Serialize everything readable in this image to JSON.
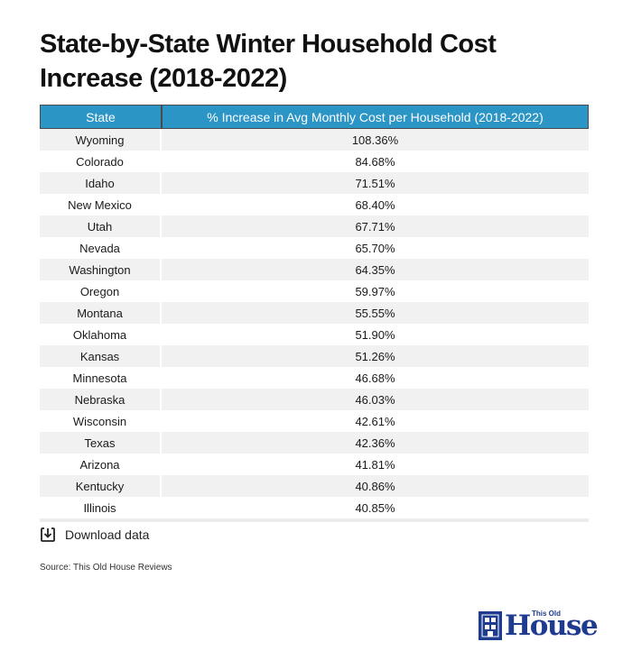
{
  "title": "State-by-State Winter Household Cost Increase (2018-2022)",
  "chart_data": {
    "type": "table",
    "columns": [
      "State",
      "% Increase in Avg Monthly Cost per Household (2018-2022)"
    ],
    "rows": [
      [
        "Wyoming",
        "108.36%"
      ],
      [
        "Colorado",
        "84.68%"
      ],
      [
        "Idaho",
        "71.51%"
      ],
      [
        "New Mexico",
        "68.40%"
      ],
      [
        "Utah",
        "67.71%"
      ],
      [
        "Nevada",
        "65.70%"
      ],
      [
        "Washington",
        "64.35%"
      ],
      [
        "Oregon",
        "59.97%"
      ],
      [
        "Montana",
        "55.55%"
      ],
      [
        "Oklahoma",
        "51.90%"
      ],
      [
        "Kansas",
        "51.26%"
      ],
      [
        "Minnesota",
        "46.68%"
      ],
      [
        "Nebraska",
        "46.03%"
      ],
      [
        "Wisconsin",
        "42.61%"
      ],
      [
        "Texas",
        "42.36%"
      ],
      [
        "Arizona",
        "41.81%"
      ],
      [
        "Kentucky",
        "40.86%"
      ],
      [
        "Illinois",
        "40.85%"
      ]
    ],
    "header_color": "#2b95c6",
    "stripe_color": "#f1f1f1"
  },
  "download": {
    "label": "Download data",
    "icon": "download-icon"
  },
  "source": "Source:  This Old House Reviews",
  "logo": {
    "small": "This Old",
    "big": "House",
    "color": "#1f3b8f"
  }
}
